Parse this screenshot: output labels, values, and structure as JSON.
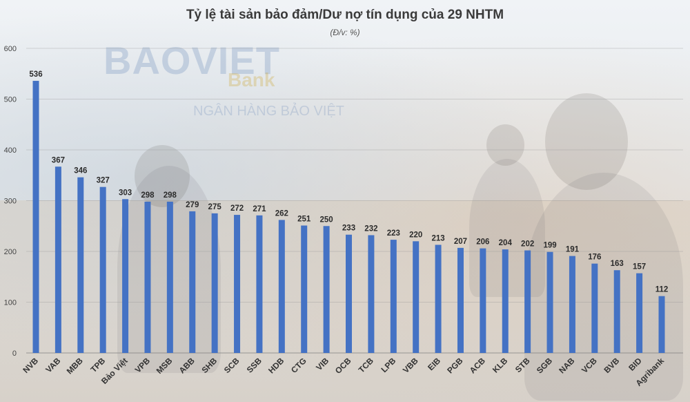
{
  "header": {
    "title": "Tỷ lệ tài sản bảo đảm/Dư nợ tín dụng của 29 NHTM",
    "subtitle": "(Đ/v: %)"
  },
  "background": {
    "logo_text": "BAOVIET",
    "bank_text": "Bank",
    "sub_text": "NGÂN HÀNG BẢO VIỆT"
  },
  "colors": {
    "bar": "#4472c4",
    "grid": "#b0b0b0"
  },
  "chart_data": {
    "type": "bar",
    "title": "Tỷ lệ tài sản bảo đảm/Dư nợ tín dụng của 29 NHTM",
    "subtitle": "(Đ/v: %)",
    "xlabel": "",
    "ylabel": "",
    "ylim": [
      0,
      600
    ],
    "yticks": [
      0,
      100,
      200,
      300,
      400,
      500,
      600
    ],
    "grid": true,
    "categories": [
      "NVB",
      "VAB",
      "MBB",
      "TPB",
      "Bảo Việt",
      "VPB",
      "MSB",
      "ABB",
      "SHB",
      "SCB",
      "SSB",
      "HDB",
      "CTG",
      "VIB",
      "OCB",
      "TCB",
      "LPB",
      "VBB",
      "EIB",
      "PGB",
      "ACB",
      "KLB",
      "STB",
      "SGB",
      "NAB",
      "VCB",
      "BVB",
      "BID",
      "Agribank"
    ],
    "values": [
      536,
      367,
      346,
      327,
      303,
      298,
      298,
      279,
      275,
      272,
      271,
      262,
      251,
      250,
      233,
      232,
      223,
      220,
      213,
      207,
      206,
      204,
      202,
      199,
      191,
      176,
      163,
      157,
      112
    ]
  }
}
